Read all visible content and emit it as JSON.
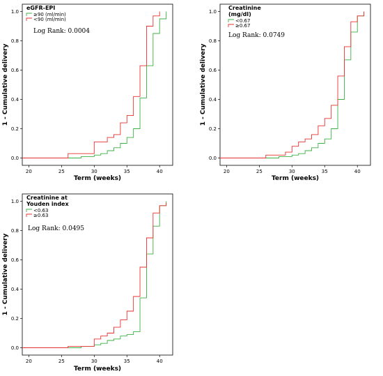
{
  "colors": {
    "green": "#3cb043",
    "red": "#e8312f",
    "frame": "#000000"
  },
  "chart_data": [
    {
      "type": "line",
      "step": true,
      "xlabel": "Term (weeks)",
      "ylabel": "1 - Cumulative delivery",
      "xticks": [
        20,
        25,
        30,
        35,
        40
      ],
      "yticks": [
        "0.0",
        "0.2",
        "0.4",
        "0.6",
        "0.8",
        "1.0"
      ],
      "xlim": [
        19,
        42
      ],
      "ylim": [
        -0.05,
        1.05
      ],
      "legend_title": [
        "eGFR-EPI"
      ],
      "logrank": "Log Rank: 0.0004",
      "series": [
        {
          "name": "≥90 (ml/min)",
          "color": "green",
          "x": [
            19,
            28,
            30,
            31,
            32,
            33,
            34,
            35,
            36,
            37,
            38,
            39,
            40,
            41
          ],
          "y": [
            0,
            0.01,
            0.02,
            0.03,
            0.05,
            0.07,
            0.1,
            0.14,
            0.2,
            0.41,
            0.63,
            0.85,
            0.95,
            1.0
          ]
        },
        {
          "name": "<90 (ml/min)",
          "color": "red",
          "x": [
            19,
            26,
            30,
            32,
            33,
            34,
            35,
            36,
            37,
            38,
            39,
            40
          ],
          "y": [
            0,
            0.03,
            0.11,
            0.14,
            0.16,
            0.24,
            0.29,
            0.42,
            0.63,
            0.9,
            0.97,
            1.0
          ]
        }
      ]
    },
    {
      "type": "line",
      "step": true,
      "xlabel": "Term (weeks)",
      "ylabel": "1 - Cumulative delivery",
      "xticks": [
        20,
        25,
        30,
        35,
        40
      ],
      "yticks": [
        "0.0",
        "0.2",
        "0.4",
        "0.6",
        "0.8",
        "1.0"
      ],
      "xlim": [
        19,
        42
      ],
      "ylim": [
        -0.05,
        1.05
      ],
      "legend_title": [
        "Creatinine",
        "(mg/dl)"
      ],
      "logrank": "Log Rank: 0.0749",
      "series": [
        {
          "name": "<0.67",
          "color": "green",
          "x": [
            19,
            28,
            30,
            31,
            32,
            33,
            34,
            35,
            36,
            37,
            38,
            39,
            40,
            41
          ],
          "y": [
            0,
            0.01,
            0.02,
            0.03,
            0.05,
            0.07,
            0.1,
            0.13,
            0.2,
            0.4,
            0.67,
            0.86,
            0.97,
            1.0
          ]
        },
        {
          "name": "≥0.67",
          "color": "red",
          "x": [
            19,
            26,
            29,
            30,
            31,
            32,
            33,
            34,
            35,
            36,
            37,
            38,
            39,
            40,
            41
          ],
          "y": [
            0,
            0.02,
            0.04,
            0.08,
            0.11,
            0.13,
            0.16,
            0.22,
            0.27,
            0.36,
            0.56,
            0.76,
            0.93,
            0.97,
            1.0
          ]
        }
      ]
    },
    {
      "type": "line",
      "step": true,
      "xlabel": "Term (weeks)",
      "ylabel": "1 - Cumulative delivery",
      "xticks": [
        20,
        25,
        30,
        35,
        40
      ],
      "yticks": [
        "0.0",
        "0.2",
        "0.4",
        "0.6",
        "0.8",
        "1.0"
      ],
      "xlim": [
        19,
        42
      ],
      "ylim": [
        -0.05,
        1.05
      ],
      "legend_title": [
        "Creatinine  at",
        "Youden index"
      ],
      "logrank": "Log Rank: 0.0495",
      "series": [
        {
          "name": "<0.63",
          "color": "green",
          "x": [
            19,
            28,
            30,
            31,
            32,
            33,
            34,
            35,
            36,
            37,
            38,
            39,
            40,
            41
          ],
          "y": [
            0,
            0.01,
            0.02,
            0.03,
            0.05,
            0.06,
            0.08,
            0.09,
            0.11,
            0.34,
            0.64,
            0.83,
            0.97,
            1.0
          ]
        },
        {
          "name": "≥0.63",
          "color": "red",
          "x": [
            19,
            26,
            30,
            31,
            32,
            33,
            34,
            35,
            36,
            37,
            38,
            39,
            40,
            41
          ],
          "y": [
            0,
            0.01,
            0.06,
            0.08,
            0.1,
            0.14,
            0.19,
            0.25,
            0.35,
            0.55,
            0.75,
            0.92,
            0.97,
            0.99
          ]
        }
      ]
    }
  ]
}
